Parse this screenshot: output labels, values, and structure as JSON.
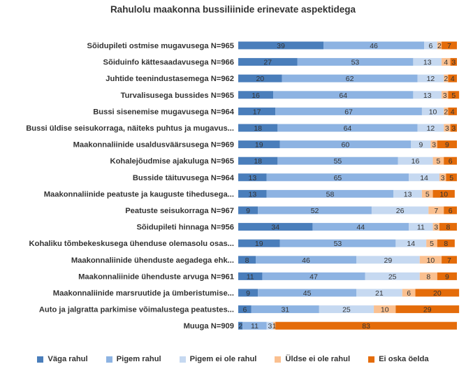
{
  "chart_data": {
    "type": "bar",
    "orientation": "horizontal",
    "stacked": true,
    "title": "Rahulolu maakonna bussiliinide erinevate aspektidega",
    "categories": [
      "Sõidupileti ostmise mugavusega N=965",
      "Sõiduinfo kättesaadavusega N=966",
      "Juhtide teenindustasemega N=962",
      "Turvalisusega bussides N=965",
      "Bussi sisenemise mugavusega N=964",
      "Bussi üldise seisukorraga, näiteks puhtus ja mugavus...",
      "Maakonnaliinide usaldusväärsusega N=969",
      "Kohalejõudmise ajakuluga N=965",
      "Busside täituvusega N=964",
      "Maakonnaliinide peatuste ja kauguste tihedusega...",
      "Peatuste seisukorraga N=967",
      "Sõidupileti hinnaga N=956",
      "Kohaliku tõmbekeskusega ühenduse olemasolu osas...",
      "Maakonnaliinide ühenduste aegadega ehk...",
      "Maakonnaliinide ühenduste arvuga N=961",
      "Maakonnaliinide marsruutide ja ümberistumise...",
      "Auto ja jalgratta parkimise võimalustega peatustes...",
      "Muuga N=909"
    ],
    "series": [
      {
        "name": "Väga rahul",
        "color": "#4a7ebb",
        "values": [
          39,
          27,
          20,
          16,
          17,
          18,
          19,
          18,
          13,
          13,
          9,
          34,
          19,
          8,
          11,
          9,
          6,
          2
        ]
      },
      {
        "name": "Pigem rahul",
        "color": "#8db3e2",
        "values": [
          46,
          53,
          62,
          64,
          67,
          64,
          60,
          55,
          65,
          58,
          52,
          44,
          53,
          46,
          47,
          45,
          31,
          11
        ]
      },
      {
        "name": "Pigem ei ole rahul",
        "color": "#c6d9f1",
        "values": [
          6,
          13,
          12,
          13,
          10,
          12,
          9,
          16,
          14,
          13,
          26,
          11,
          14,
          29,
          25,
          21,
          25,
          3
        ]
      },
      {
        "name": "Üldse ei ole rahul",
        "color": "#fac090",
        "values": [
          2,
          4,
          2,
          3,
          2,
          3,
          3,
          5,
          3,
          5,
          7,
          3,
          5,
          10,
          8,
          6,
          10,
          1
        ]
      },
      {
        "name": "Ei oska öelda",
        "color": "#e46c0a",
        "values": [
          7,
          3,
          4,
          5,
          4,
          3,
          9,
          6,
          5,
          10,
          6,
          8,
          8,
          7,
          9,
          20,
          29,
          83
        ]
      }
    ],
    "xlim": [
      0,
      100
    ],
    "grid": false,
    "legend_position": "bottom"
  }
}
